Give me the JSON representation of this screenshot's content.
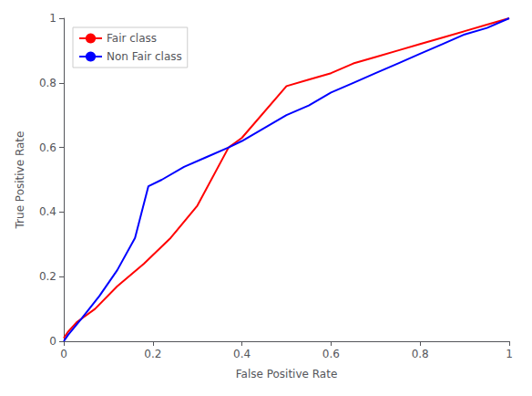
{
  "chart_data": {
    "type": "line",
    "xlabel": "False Positive Rate",
    "ylabel": "True Positive Rate",
    "series": [
      {
        "name": "Fair class",
        "color": "#ff0000",
        "x": [
          0.0,
          0.01,
          0.03,
          0.07,
          0.12,
          0.18,
          0.24,
          0.3,
          0.37,
          0.4,
          0.5,
          0.55,
          0.6,
          0.65,
          0.7,
          0.75,
          0.8,
          0.85,
          0.9,
          0.95,
          1.0
        ],
        "values": [
          0.01,
          0.03,
          0.06,
          0.1,
          0.17,
          0.24,
          0.32,
          0.42,
          0.6,
          0.63,
          0.79,
          0.81,
          0.83,
          0.86,
          0.88,
          0.9,
          0.92,
          0.94,
          0.96,
          0.98,
          1.0
        ]
      },
      {
        "name": "Non Fair class",
        "color": "#0000ff",
        "x": [
          0.0,
          0.01,
          0.04,
          0.08,
          0.12,
          0.16,
          0.19,
          0.22,
          0.27,
          0.32,
          0.37,
          0.4,
          0.45,
          0.5,
          0.55,
          0.6,
          0.65,
          0.7,
          0.75,
          0.8,
          0.85,
          0.9,
          0.95,
          1.0
        ],
        "values": [
          0.0,
          0.02,
          0.07,
          0.14,
          0.22,
          0.32,
          0.48,
          0.5,
          0.54,
          0.57,
          0.6,
          0.62,
          0.66,
          0.7,
          0.73,
          0.77,
          0.8,
          0.83,
          0.86,
          0.89,
          0.92,
          0.95,
          0.97,
          1.0
        ]
      }
    ],
    "xlim": [
      0.0,
      1.0
    ],
    "ylim": [
      0.0,
      1.0
    ],
    "xticks": [
      0,
      0.2,
      0.4,
      0.6,
      0.8,
      1
    ],
    "yticks": [
      0,
      0.2,
      0.4,
      0.6,
      0.8,
      1
    ],
    "grid": false,
    "legend": "upper left"
  }
}
